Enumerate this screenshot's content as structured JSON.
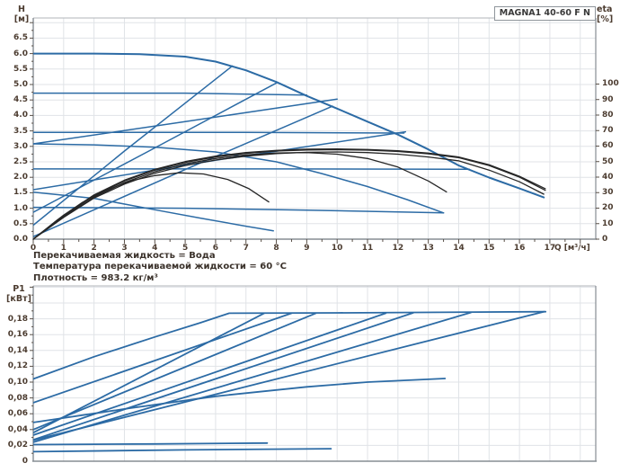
{
  "title_box": {
    "text": "MAGNA1 40-60 F N"
  },
  "info": [
    "Перекачиваемая жидкость = Вода",
    "Температура перекачиваемой жидкости = 60 °C",
    "Плотность = 983.2 кг/м³"
  ],
  "colors": {
    "blue": "#2c6ba5",
    "black": "#262626",
    "grid": "#e0e3e7",
    "border": "#b0b5ba",
    "axis": "#878d93",
    "tickmark": "#5a5048",
    "label": "#4c3c30"
  },
  "chart_data": [
    {
      "type": "line",
      "title": "MAGNA1 40-60 F N",
      "xlabel": "Q [м³/ч]",
      "ylabel_1": "H",
      "ylabel_2": "[м]",
      "y2label_1": "eta",
      "y2label_2": "[%]",
      "x_min": 0,
      "x_max": 18.51,
      "y_min": 0,
      "y_max": 7.151,
      "grid_y_step": 0.5,
      "y2_max": 142.6,
      "x_tick_labels": [
        "0",
        "1",
        "2",
        "3",
        "4",
        "5",
        "6",
        "7",
        "8",
        "9",
        "10",
        "11",
        "12",
        "13",
        "14",
        "15",
        "16",
        "17"
      ],
      "y_ticks": {
        "labels": [
          "0.0",
          "0.5",
          "1.0",
          "1.5",
          "2.0",
          "2.5",
          "3.0",
          "3.5",
          "4.0",
          "4.5",
          "5.0",
          "5.5",
          "6.0",
          "6.5"
        ],
        "values": [
          0,
          0.5,
          1,
          1.5,
          2,
          2.5,
          3,
          3.5,
          4,
          4.5,
          5,
          5.5,
          6,
          6.5
        ]
      },
      "y2_ticks": {
        "labels": [
          "0",
          "10",
          "20",
          "30",
          "40",
          "50",
          "60",
          "70",
          "80",
          "90",
          "100"
        ],
        "values": [
          0,
          10,
          20,
          30,
          40,
          50,
          60,
          70,
          80,
          90,
          100
        ]
      },
      "series": [
        {
          "name": "max-speed-curve",
          "axis": "y",
          "color": "blue",
          "width": 2,
          "points": [
            [
              0,
              6.0
            ],
            [
              2,
              6.0
            ],
            [
              3.5,
              5.98
            ],
            [
              5,
              5.9
            ],
            [
              6,
              5.74
            ],
            [
              7,
              5.46
            ],
            [
              8,
              5.08
            ],
            [
              9,
              4.63
            ],
            [
              10,
              4.22
            ],
            [
              11,
              3.8
            ],
            [
              12,
              3.38
            ],
            [
              13,
              2.9
            ],
            [
              14,
              2.38
            ],
            [
              15,
              1.99
            ],
            [
              16,
              1.64
            ],
            [
              16.8,
              1.35
            ]
          ]
        },
        {
          "name": "const-pressure-4.7",
          "axis": "y",
          "color": "blue",
          "width": 1.5,
          "points": [
            [
              0,
              4.72
            ],
            [
              5,
              4.72
            ],
            [
              9.0,
              4.66
            ]
          ]
        },
        {
          "name": "const-pressure-3.45",
          "axis": "y",
          "color": "blue",
          "width": 1.5,
          "points": [
            [
              0,
              3.45
            ],
            [
              7,
              3.45
            ],
            [
              12.2,
              3.43
            ]
          ]
        },
        {
          "name": "const-pressure-2.27",
          "axis": "y",
          "color": "blue",
          "width": 1.5,
          "points": [
            [
              0,
              2.27
            ],
            [
              8,
              2.27
            ],
            [
              14.35,
              2.26
            ]
          ]
        },
        {
          "name": "prop-pressure-a",
          "axis": "y",
          "color": "blue",
          "width": 1.5,
          "points": [
            [
              0,
              0.45
            ],
            [
              3,
              2.85
            ],
            [
              6.55,
              5.6
            ]
          ]
        },
        {
          "name": "prop-pressure-b",
          "axis": "y",
          "color": "blue",
          "width": 1.5,
          "points": [
            [
              0,
              0.87
            ],
            [
              4,
              2.95
            ],
            [
              8.0,
              5.05
            ]
          ]
        },
        {
          "name": "prop-pressure-c",
          "axis": "y",
          "color": "blue",
          "width": 1.5,
          "points": [
            [
              0,
              0.08
            ],
            [
              5,
              2.25
            ],
            [
              9.85,
              4.3
            ]
          ]
        },
        {
          "name": "prop-pressure-d",
          "axis": "y",
          "color": "blue",
          "width": 1.5,
          "points": [
            [
              0,
              3.08
            ],
            [
              5,
              3.8
            ],
            [
              10.0,
              4.53
            ]
          ]
        },
        {
          "name": "prop-pressure-e",
          "axis": "y",
          "color": "blue",
          "width": 1.5,
          "points": [
            [
              0,
              1.6
            ],
            [
              6,
              2.55
            ],
            [
              12.25,
              3.47
            ]
          ]
        },
        {
          "name": "speed-2-curve",
          "axis": "y",
          "color": "blue",
          "width": 1.5,
          "points": [
            [
              0,
              3.08
            ],
            [
              2,
              3.05
            ],
            [
              4,
              2.97
            ],
            [
              6,
              2.82
            ],
            [
              8,
              2.5
            ],
            [
              9.5,
              2.12
            ],
            [
              11,
              1.7
            ],
            [
              12.3,
              1.28
            ],
            [
              13.5,
              0.85
            ]
          ]
        },
        {
          "name": "min-speed-curve",
          "axis": "y",
          "color": "blue",
          "width": 1.5,
          "points": [
            [
              0,
              1.52
            ],
            [
              2,
              1.32
            ],
            [
              4,
              0.95
            ],
            [
              5.5,
              0.68
            ],
            [
              7,
              0.42
            ],
            [
              7.9,
              0.27
            ]
          ]
        },
        {
          "name": "low-flat-curve",
          "axis": "y",
          "color": "blue",
          "width": 1.5,
          "points": [
            [
              0,
              1.03
            ],
            [
              5,
              1.0
            ],
            [
              9,
              0.94
            ],
            [
              13.5,
              0.85
            ]
          ]
        },
        {
          "name": "eta-curve-1",
          "axis": "y2",
          "color": "black",
          "width": 1.3,
          "points": [
            [
              0,
              0
            ],
            [
              1,
              15
            ],
            [
              2,
              28
            ],
            [
              3,
              37.5
            ],
            [
              4,
              44.5
            ],
            [
              5,
              49.5
            ],
            [
              6,
              53
            ],
            [
              7,
              55.3
            ],
            [
              8,
              56.8
            ],
            [
              9,
              57.5
            ],
            [
              10,
              57.7
            ],
            [
              11,
              57.4
            ],
            [
              12,
              56.5
            ],
            [
              13,
              55
            ],
            [
              14,
              52.5
            ],
            [
              15,
              47.5
            ],
            [
              16,
              40
            ],
            [
              16.85,
              31.5
            ]
          ]
        },
        {
          "name": "eta-curve-2",
          "axis": "y2",
          "color": "black",
          "width": 1.3,
          "points": [
            [
              0,
              0
            ],
            [
              1,
              14
            ],
            [
              2,
              26.5
            ],
            [
              3,
              35.5
            ],
            [
              4,
              42.5
            ],
            [
              5,
              47.5
            ],
            [
              6,
              51
            ],
            [
              7,
              53.5
            ],
            [
              8,
              55.2
            ],
            [
              9,
              56
            ],
            [
              10,
              56.2
            ],
            [
              11,
              55.8
            ],
            [
              12,
              54.8
            ],
            [
              13,
              53
            ],
            [
              14,
              50.5
            ],
            [
              15,
              44.5
            ],
            [
              16,
              37
            ],
            [
              16.8,
              29
            ]
          ]
        },
        {
          "name": "eta-curve-3",
          "axis": "y2",
          "color": "black",
          "width": 1.3,
          "points": [
            [
              0,
              0
            ],
            [
              1,
              14.5
            ],
            [
              2,
              27
            ],
            [
              3,
              36.5
            ],
            [
              4,
              43.5
            ],
            [
              5,
              48.5
            ],
            [
              6,
              52
            ],
            [
              7,
              54.3
            ],
            [
              8,
              55.6
            ],
            [
              9,
              55.8
            ],
            [
              10,
              54.8
            ],
            [
              11,
              52
            ],
            [
              12,
              46.5
            ],
            [
              13,
              37.5
            ],
            [
              13.6,
              30.5
            ]
          ]
        },
        {
          "name": "eta-curve-4",
          "axis": "y2",
          "color": "black",
          "width": 1.3,
          "points": [
            [
              0,
              0
            ],
            [
              0.8,
              12.5
            ],
            [
              1.6,
              23.5
            ],
            [
              2.4,
              31.5
            ],
            [
              3.2,
              37.5
            ],
            [
              4,
              41
            ],
            [
              4.8,
              42.8
            ],
            [
              5.6,
              42
            ],
            [
              6.4,
              38.5
            ],
            [
              7.1,
              32.5
            ],
            [
              7.75,
              24
            ]
          ]
        },
        {
          "name": "eta-curve-5",
          "axis": "y2",
          "color": "black",
          "width": 1.3,
          "points": [
            [
              0,
              0
            ],
            [
              1,
              15.5
            ],
            [
              2,
              28.5
            ],
            [
              3,
              38
            ],
            [
              4,
              45
            ],
            [
              5,
              50
            ],
            [
              6,
              53.5
            ],
            [
              7,
              55.8
            ],
            [
              8,
              57.2
            ],
            [
              9,
              58
            ],
            [
              10,
              58.2
            ],
            [
              11,
              57.8
            ],
            [
              12,
              57
            ],
            [
              13,
              55.5
            ],
            [
              14,
              53
            ],
            [
              15,
              48
            ],
            [
              16,
              40.5
            ],
            [
              16.85,
              32.5
            ]
          ]
        }
      ]
    },
    {
      "type": "line",
      "xlabel": "",
      "ylabel_1": "P1",
      "ylabel_2": "[кВт]",
      "x_min": 0,
      "x_max": 18.51,
      "y_min": 0,
      "y_max": 0.2216,
      "grid_y_step": 0.02,
      "x_tick_labels": null,
      "y_ticks": {
        "labels": [
          "0",
          "0,02",
          "0,04",
          "0,06",
          "0,08",
          "0,10",
          "0,12",
          "0,14",
          "0,16",
          "0,18"
        ],
        "values": [
          0,
          0.02,
          0.04,
          0.06,
          0.08,
          0.1,
          0.12,
          0.14,
          0.16,
          0.18
        ]
      },
      "series": [
        {
          "name": "power-max",
          "axis": "y",
          "color": "blue",
          "width": 1.8,
          "points": [
            [
              0,
              0.104
            ],
            [
              2,
              0.132
            ],
            [
              4,
              0.157
            ],
            [
              5.5,
              0.175
            ],
            [
              6.45,
              0.187
            ],
            [
              10,
              0.1875
            ],
            [
              16.86,
              0.189
            ]
          ]
        },
        {
          "name": "power-rise-1",
          "axis": "y",
          "color": "blue",
          "width": 1.8,
          "points": [
            [
              0,
              0.074
            ],
            [
              8.5,
              0.187
            ]
          ]
        },
        {
          "name": "power-rise-2",
          "axis": "y",
          "color": "blue",
          "width": 1.8,
          "points": [
            [
              0,
              0.036
            ],
            [
              7.6,
              0.187
            ]
          ]
        },
        {
          "name": "power-rise-3",
          "axis": "y",
          "color": "blue",
          "width": 1.8,
          "points": [
            [
              0,
              0.04
            ],
            [
              9.3,
              0.187
            ]
          ]
        },
        {
          "name": "power-rise-4",
          "axis": "y",
          "color": "blue",
          "width": 1.8,
          "points": [
            [
              0,
              0.033
            ],
            [
              11.6,
              0.187
            ]
          ]
        },
        {
          "name": "power-rise-5",
          "axis": "y",
          "color": "blue",
          "width": 1.8,
          "points": [
            [
              0,
              0.027
            ],
            [
              12.5,
              0.1875
            ]
          ]
        },
        {
          "name": "power-rise-6",
          "axis": "y",
          "color": "blue",
          "width": 1.8,
          "points": [
            [
              0,
              0.024
            ],
            [
              14.4,
              0.188
            ]
          ]
        },
        {
          "name": "power-rise-7",
          "axis": "y",
          "color": "blue",
          "width": 1.8,
          "points": [
            [
              0,
              0.0265
            ],
            [
              16.8,
              0.189
            ]
          ]
        },
        {
          "name": "power-speed-2",
          "axis": "y",
          "color": "blue",
          "width": 1.8,
          "points": [
            [
              0,
              0.049
            ],
            [
              3,
              0.066
            ],
            [
              6,
              0.082
            ],
            [
              9,
              0.094
            ],
            [
              11,
              0.1
            ],
            [
              13.55,
              0.1045
            ]
          ]
        },
        {
          "name": "power-min",
          "axis": "y",
          "color": "blue",
          "width": 1.8,
          "points": [
            [
              0,
              0.021
            ],
            [
              4,
              0.0218
            ],
            [
              7.7,
              0.023
            ]
          ]
        },
        {
          "name": "power-low",
          "axis": "y",
          "color": "blue",
          "width": 1.8,
          "points": [
            [
              0,
              0.012
            ],
            [
              5,
              0.0143
            ],
            [
              9.8,
              0.0158
            ]
          ]
        }
      ]
    }
  ]
}
